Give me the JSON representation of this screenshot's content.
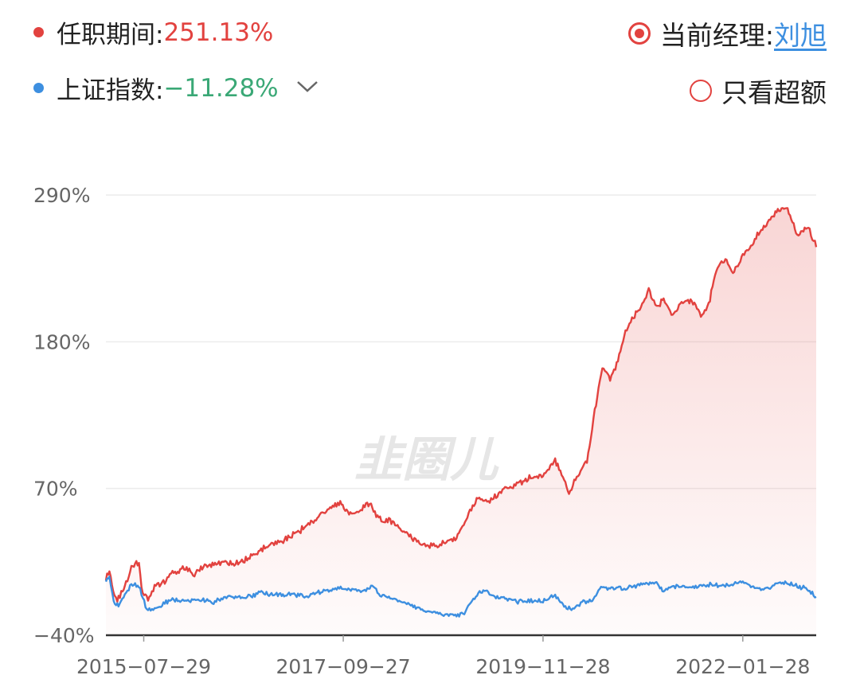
{
  "legend": {
    "fund": {
      "label": "任职期间:",
      "value": "251.13%",
      "color": "#e2423f"
    },
    "index": {
      "label": "上证指数:",
      "value": "−11.28%",
      "color": "#3d8fe0",
      "value_color": "#3aa876",
      "dropdown_icon": "chevron-down-icon"
    }
  },
  "toggles": {
    "manager": {
      "label": "当前经理: ",
      "name": "刘旭",
      "checked": true
    },
    "excess": {
      "label": "只看超额",
      "checked": false
    }
  },
  "watermark": "韭圈儿",
  "chart_data": {
    "type": "line",
    "title": "",
    "xlabel": "",
    "ylabel": "",
    "ylim": [
      -40,
      290
    ],
    "yticks": [
      "290%",
      "180%",
      "70%",
      "−40%"
    ],
    "ytick_values": [
      290,
      180,
      70,
      -40
    ],
    "xticks": [
      "2015−07−29",
      "2017−09−27",
      "2019−11−28",
      "2022−01−28"
    ],
    "xtick_values": [
      "2015-07-29",
      "2017-09-27",
      "2019-11-28",
      "2022-01-28"
    ],
    "x_range": [
      "2015-03-01",
      "2022-11-15"
    ],
    "grid": true,
    "area_fill_under": "任职期间",
    "series": [
      {
        "name": "任职期间",
        "color": "#e2423f",
        "points": [
          [
            "2015-03-01",
            2
          ],
          [
            "2015-03-15",
            9
          ],
          [
            "2015-03-30",
            -8
          ],
          [
            "2015-04-15",
            -14
          ],
          [
            "2015-05-01",
            -8
          ],
          [
            "2015-05-20",
            0
          ],
          [
            "2015-06-10",
            10
          ],
          [
            "2015-06-25",
            14
          ],
          [
            "2015-07-10",
            12
          ],
          [
            "2015-07-25",
            -10
          ],
          [
            "2015-08-15",
            -12
          ],
          [
            "2015-09-10",
            -3
          ],
          [
            "2015-10-15",
            0
          ],
          [
            "2015-11-20",
            7
          ],
          [
            "2016-01-10",
            10
          ],
          [
            "2016-02-15",
            6
          ],
          [
            "2016-04-01",
            12
          ],
          [
            "2016-06-01",
            15
          ],
          [
            "2016-08-01",
            14
          ],
          [
            "2016-10-01",
            19
          ],
          [
            "2016-12-01",
            27
          ],
          [
            "2017-02-01",
            31
          ],
          [
            "2017-04-01",
            37
          ],
          [
            "2017-06-01",
            46
          ],
          [
            "2017-08-01",
            55
          ],
          [
            "2017-09-15",
            60
          ],
          [
            "2017-10-20",
            52
          ],
          [
            "2017-12-01",
            52
          ],
          [
            "2018-01-10",
            60
          ],
          [
            "2018-02-15",
            47
          ],
          [
            "2018-04-01",
            46
          ],
          [
            "2018-05-15",
            38
          ],
          [
            "2018-07-01",
            32
          ],
          [
            "2018-08-15",
            28
          ],
          [
            "2018-10-01",
            26
          ],
          [
            "2018-11-10",
            30
          ],
          [
            "2018-12-20",
            34
          ],
          [
            "2019-02-01",
            48
          ],
          [
            "2019-03-15",
            64
          ],
          [
            "2019-05-01",
            60
          ],
          [
            "2019-06-15",
            68
          ],
          [
            "2019-08-01",
            72
          ],
          [
            "2019-09-15",
            76
          ],
          [
            "2019-10-20",
            79
          ],
          [
            "2019-11-28",
            80
          ],
          [
            "2020-01-15",
            92
          ],
          [
            "2020-02-15",
            78
          ],
          [
            "2020-03-10",
            66
          ],
          [
            "2020-04-15",
            80
          ],
          [
            "2020-05-20",
            90
          ],
          [
            "2020-06-20",
            128
          ],
          [
            "2020-07-20",
            160
          ],
          [
            "2020-08-20",
            152
          ],
          [
            "2020-09-20",
            166
          ],
          [
            "2020-10-20",
            188
          ],
          [
            "2020-11-20",
            198
          ],
          [
            "2020-12-20",
            206
          ],
          [
            "2021-01-20",
            220
          ],
          [
            "2021-02-20",
            205
          ],
          [
            "2021-03-20",
            212
          ],
          [
            "2021-04-20",
            200
          ],
          [
            "2021-05-20",
            206
          ],
          [
            "2021-06-20",
            212
          ],
          [
            "2021-07-20",
            208
          ],
          [
            "2021-08-20",
            198
          ],
          [
            "2021-09-20",
            212
          ],
          [
            "2021-10-20",
            236
          ],
          [
            "2021-11-20",
            242
          ],
          [
            "2021-12-20",
            232
          ],
          [
            "2022-01-28",
            244
          ],
          [
            "2022-03-01",
            252
          ],
          [
            "2022-04-01",
            262
          ],
          [
            "2022-06-01",
            276
          ],
          [
            "2022-07-20",
            282
          ],
          [
            "2022-09-01",
            260
          ],
          [
            "2022-10-15",
            265
          ],
          [
            "2022-11-15",
            251
          ]
        ]
      },
      {
        "name": "上证指数",
        "color": "#3d8fe0",
        "points": [
          [
            "2015-03-01",
            0
          ],
          [
            "2015-03-15",
            4
          ],
          [
            "2015-04-01",
            -15
          ],
          [
            "2015-04-20",
            -18
          ],
          [
            "2015-05-15",
            -10
          ],
          [
            "2015-06-10",
            -2
          ],
          [
            "2015-06-25",
            -2
          ],
          [
            "2015-07-15",
            -6
          ],
          [
            "2015-08-10",
            -21
          ],
          [
            "2015-09-10",
            -21
          ],
          [
            "2015-10-15",
            -16
          ],
          [
            "2015-11-20",
            -13
          ],
          [
            "2016-01-10",
            -15
          ],
          [
            "2016-03-01",
            -13
          ],
          [
            "2016-05-01",
            -15
          ],
          [
            "2016-07-01",
            -11
          ],
          [
            "2016-09-01",
            -12
          ],
          [
            "2016-11-01",
            -8
          ],
          [
            "2017-01-01",
            -10
          ],
          [
            "2017-03-01",
            -9
          ],
          [
            "2017-05-01",
            -11
          ],
          [
            "2017-07-01",
            -7
          ],
          [
            "2017-09-27",
            -5
          ],
          [
            "2017-12-01",
            -7
          ],
          [
            "2018-01-25",
            -3
          ],
          [
            "2018-02-20",
            -10
          ],
          [
            "2018-04-01",
            -12
          ],
          [
            "2018-06-01",
            -16
          ],
          [
            "2018-08-01",
            -21
          ],
          [
            "2018-10-15",
            -24
          ],
          [
            "2018-12-20",
            -26
          ],
          [
            "2019-01-20",
            -23
          ],
          [
            "2019-02-20",
            -13
          ],
          [
            "2019-04-10",
            -6
          ],
          [
            "2019-05-20",
            -12
          ],
          [
            "2019-07-01",
            -12
          ],
          [
            "2019-08-20",
            -15
          ],
          [
            "2019-10-01",
            -14
          ],
          [
            "2019-11-28",
            -14
          ],
          [
            "2020-01-15",
            -10
          ],
          [
            "2020-02-05",
            -16
          ],
          [
            "2020-03-20",
            -21
          ],
          [
            "2020-05-01",
            -16
          ],
          [
            "2020-06-15",
            -13
          ],
          [
            "2020-07-15",
            -4
          ],
          [
            "2020-08-20",
            -5
          ],
          [
            "2020-10-15",
            -5
          ],
          [
            "2020-12-20",
            -2
          ],
          [
            "2021-02-15",
            0
          ],
          [
            "2021-03-15",
            -6
          ],
          [
            "2021-05-15",
            -3
          ],
          [
            "2021-07-20",
            -4
          ],
          [
            "2021-09-15",
            -2
          ],
          [
            "2021-11-15",
            -3
          ],
          [
            "2022-01-28",
            0
          ],
          [
            "2022-03-01",
            -3
          ],
          [
            "2022-04-15",
            -6
          ],
          [
            "2022-06-01",
            -2
          ],
          [
            "2022-07-15",
            0
          ],
          [
            "2022-09-01",
            -3
          ],
          [
            "2022-10-15",
            -6
          ],
          [
            "2022-11-15",
            -11.28
          ]
        ]
      }
    ]
  }
}
